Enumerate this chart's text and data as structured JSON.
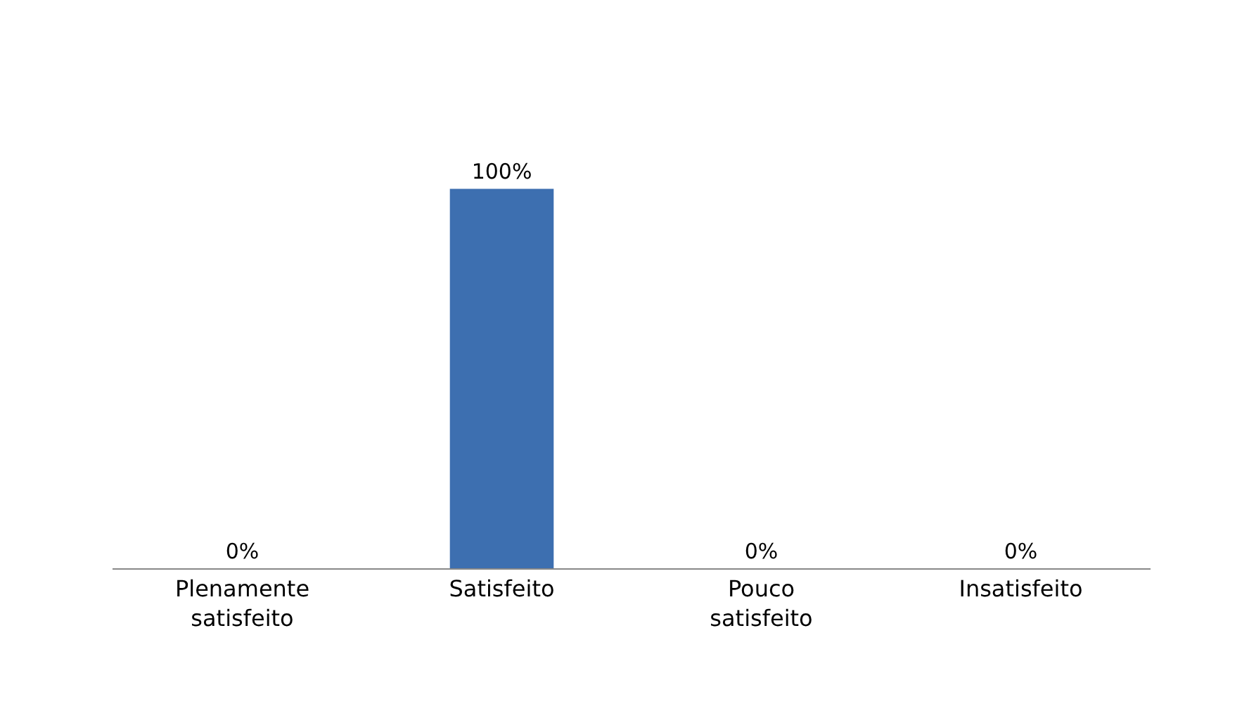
{
  "chart_data": {
    "type": "bar",
    "categories": [
      "Plenamente satisfeito",
      "Satisfeito",
      "Pouco satisfeito",
      "Insatisfeito"
    ],
    "values": [
      0,
      100,
      0,
      0
    ],
    "value_labels": [
      "0%",
      "100%",
      "0%",
      "0%"
    ],
    "color": "#3d6fb0",
    "grid": false,
    "legend": false
  }
}
